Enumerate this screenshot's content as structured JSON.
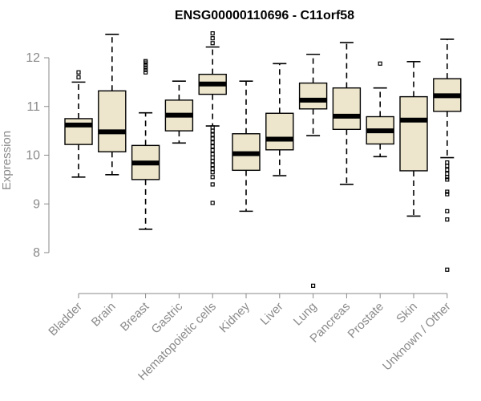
{
  "chart_data": {
    "type": "boxplot",
    "title": "ENSG00000110696 - C11orf58",
    "xlabel": "",
    "ylabel": "Expression",
    "ylim": [
      7.3,
      12.5
    ],
    "yticks": [
      8,
      9,
      10,
      11,
      12
    ],
    "box_fill": "#ede6cc",
    "axis_color": "#8a8a8a",
    "categories": [
      "Bladder",
      "Brain",
      "Breast",
      "Gastric",
      "Hematopoietic cells",
      "Kidney",
      "Liver",
      "Lung",
      "Pancreas",
      "Prostate",
      "Skin",
      "Unknown / Other"
    ],
    "boxes": [
      {
        "name": "Bladder",
        "whisker_low": 9.55,
        "q1": 10.22,
        "median": 10.62,
        "q3": 10.75,
        "whisker_high": 11.5,
        "outliers": [
          11.6,
          11.7
        ]
      },
      {
        "name": "Brain",
        "whisker_low": 9.6,
        "q1": 10.07,
        "median": 10.48,
        "q3": 11.32,
        "whisker_high": 12.48,
        "outliers": []
      },
      {
        "name": "Breast",
        "whisker_low": 8.48,
        "q1": 9.5,
        "median": 9.84,
        "q3": 10.2,
        "whisker_high": 10.87,
        "outliers": [
          11.7,
          11.75,
          11.8,
          11.85,
          11.9,
          11.93
        ]
      },
      {
        "name": "Gastric",
        "whisker_low": 10.25,
        "q1": 10.5,
        "median": 10.82,
        "q3": 11.13,
        "whisker_high": 11.52,
        "outliers": []
      },
      {
        "name": "Hematopoietic cells",
        "whisker_low": 10.6,
        "q1": 11.25,
        "median": 11.46,
        "q3": 11.66,
        "whisker_high": 12.22,
        "outliers": [
          9.02,
          9.4,
          9.55,
          9.65,
          9.72,
          9.8,
          9.88,
          9.95,
          10.02,
          10.1,
          10.18,
          10.26,
          10.34,
          10.42,
          10.5,
          10.57,
          12.3,
          12.4,
          12.5
        ]
      },
      {
        "name": "Kidney",
        "whisker_low": 8.85,
        "q1": 9.69,
        "median": 10.03,
        "q3": 10.44,
        "whisker_high": 11.52,
        "outliers": []
      },
      {
        "name": "Liver",
        "whisker_low": 9.58,
        "q1": 10.11,
        "median": 10.33,
        "q3": 10.86,
        "whisker_high": 11.88,
        "outliers": []
      },
      {
        "name": "Lung",
        "whisker_low": 10.4,
        "q1": 10.95,
        "median": 11.13,
        "q3": 11.48,
        "whisker_high": 12.07,
        "outliers": [
          7.32
        ]
      },
      {
        "name": "Pancreas",
        "whisker_low": 9.4,
        "q1": 10.53,
        "median": 10.8,
        "q3": 11.38,
        "whisker_high": 12.31,
        "outliers": []
      },
      {
        "name": "Prostate",
        "whisker_low": 9.97,
        "q1": 10.23,
        "median": 10.5,
        "q3": 10.79,
        "whisker_high": 11.38,
        "outliers": [
          11.88
        ]
      },
      {
        "name": "Skin",
        "whisker_low": 8.75,
        "q1": 9.68,
        "median": 10.72,
        "q3": 11.2,
        "whisker_high": 11.92,
        "outliers": []
      },
      {
        "name": "Unknown / Other",
        "whisker_low": 9.95,
        "q1": 10.9,
        "median": 11.22,
        "q3": 11.57,
        "whisker_high": 12.38,
        "outliers": [
          7.65,
          8.68,
          8.85,
          9.2,
          9.25,
          9.5,
          9.55,
          9.62,
          9.7,
          9.78,
          9.85
        ]
      }
    ]
  }
}
